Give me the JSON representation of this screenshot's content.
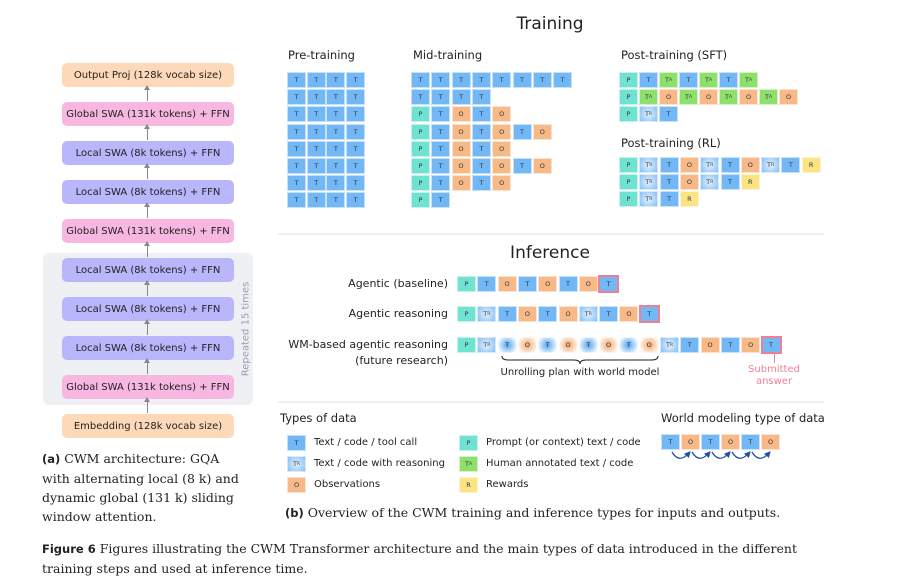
{
  "panel_a": {
    "layers": [
      {
        "label": "Output Proj  (128k vocab size)",
        "kind": "proj"
      },
      {
        "label": "Global SWA  (131k tokens)  +  FFN",
        "kind": "global"
      },
      {
        "label": "Local SWA  (8k tokens)  +  FFN",
        "kind": "local"
      },
      {
        "label": "Local SWA  (8k tokens)  +  FFN",
        "kind": "local"
      },
      {
        "label": "Global SWA  (131k tokens)  +  FFN",
        "kind": "global"
      },
      {
        "label": "Local SWA (8k tokens)  +  FFN",
        "kind": "local"
      },
      {
        "label": "Local SWA (8k tokens)  +  FFN",
        "kind": "local"
      },
      {
        "label": "Local SWA (8k tokens)  +  FFN",
        "kind": "local"
      },
      {
        "label": "Global SWA  (131k tokens)  +  FFN",
        "kind": "global"
      },
      {
        "label": "Embedding  (128k vocab size)",
        "kind": "proj"
      }
    ],
    "repeat_label": "Repeated  15 times",
    "caption_tag": "(a)",
    "caption_lines": [
      "CWM architecture: GQA",
      "with alternating local (8 k) and",
      "dynamic global (131 k) sliding",
      "window attention."
    ]
  },
  "colors": {
    "proj": "#fdd9b9",
    "global": "#f8b7e1",
    "local": "#b9b6fb",
    "repeat_bg": "#eff0f4",
    "submitted": "#ef7f95"
  },
  "tokens": {
    "T": {
      "label": "T",
      "sub": ""
    },
    "P": {
      "label": "P",
      "sub": ""
    },
    "O": {
      "label": "O",
      "sub": ""
    },
    "TA": {
      "label": "T",
      "sub": "A"
    },
    "TR": {
      "label": "T",
      "sub": "R"
    },
    "R": {
      "label": "R",
      "sub": ""
    }
  },
  "training": {
    "title": "Training",
    "pre": {
      "title": "Pre-training",
      "rows": [
        [
          "T",
          "T",
          "T",
          "T"
        ],
        [
          "T",
          "T",
          "T",
          "T"
        ],
        [
          "T",
          "T",
          "T",
          "T"
        ],
        [
          "T",
          "T",
          "T",
          "T"
        ],
        [
          "T",
          "T",
          "T",
          "T"
        ],
        [
          "T",
          "T",
          "T",
          "T"
        ],
        [
          "T",
          "T",
          "T",
          "T"
        ],
        [
          "T",
          "T",
          "T",
          "T"
        ]
      ]
    },
    "mid": {
      "title": "Mid-training",
      "rows": [
        [
          "T",
          "T",
          "T",
          "T",
          "T",
          "T",
          "T",
          "T"
        ],
        [
          "T",
          "T",
          "T",
          "T"
        ],
        [
          "P",
          "T",
          "O",
          "T",
          "O"
        ],
        [
          "P",
          "T",
          "O",
          "T",
          "O",
          "T",
          "O"
        ],
        [
          "P",
          "T",
          "O",
          "T",
          "O"
        ],
        [
          "P",
          "T",
          "O",
          "T",
          "O",
          "T",
          "O"
        ],
        [
          "P",
          "T",
          "O",
          "T",
          "O"
        ],
        [
          "P",
          "T"
        ]
      ]
    },
    "sft": {
      "title": "Post-training (SFT)",
      "rows": [
        [
          "P",
          "T",
          "TA",
          "T",
          "TA",
          "T",
          "TA"
        ],
        [
          "P",
          "TA",
          "O",
          "TA",
          "O",
          "TA",
          "O",
          "TA",
          "O"
        ],
        [
          "P",
          "TR",
          "T"
        ]
      ]
    },
    "rl": {
      "title": "Post-training (RL)",
      "rows": [
        [
          "P",
          "TR",
          "T",
          "O",
          "TR",
          "T",
          "O",
          "TR",
          "T",
          "R"
        ],
        [
          "P",
          "TR",
          "T",
          "O",
          "TR",
          "T",
          "R"
        ],
        [
          "P",
          "TR",
          "T",
          "R"
        ]
      ]
    }
  },
  "inference": {
    "title": "Inference",
    "rows": [
      {
        "label": "Agentic (baseline)",
        "tokens": [
          "P",
          "T",
          "O",
          "T",
          "O",
          "T",
          "O",
          "T"
        ]
      },
      {
        "label": "Agentic reasoning",
        "tokens": [
          "P",
          "TR",
          "T",
          "O",
          "T",
          "O",
          "TR",
          "T",
          "O",
          "T"
        ]
      },
      {
        "label": "WM-based agentic reasoning",
        "label2": "(future research)",
        "tokens": [
          "P",
          "TR",
          "T",
          "O",
          "T",
          "O",
          "T",
          "O",
          "T",
          "O",
          "TR",
          "T",
          "O",
          "T",
          "O",
          "T"
        ],
        "unrolled_from": 2,
        "unrolled_to": 9
      }
    ],
    "unroll_label": "Unrolling plan with world model",
    "submitted_label_1": "Submitted",
    "submitted_label_2": "answer"
  },
  "legend": {
    "title": "Types of data",
    "items": [
      {
        "token": "T",
        "label": "Text / code / tool call"
      },
      {
        "token": "TR",
        "label": "Text / code with reasoning"
      },
      {
        "token": "O",
        "label": "Observations"
      },
      {
        "token": "P",
        "label": "Prompt (or context)  text / code"
      },
      {
        "token": "TA",
        "label": "Human annotated text / code"
      },
      {
        "token": "R",
        "label": "Rewards"
      }
    ],
    "wm_title": "World modeling type of data",
    "wm_tokens": [
      "T",
      "O",
      "T",
      "O",
      "T",
      "O"
    ]
  },
  "panel_b_caption": {
    "tag": "(b)",
    "text": "Overview of the CWM training and inference types for inputs and outputs."
  },
  "figure_caption": {
    "tag": "Figure 6",
    "line1": "Figures illustrating the CWM Transformer architecture and the main types of data introduced in the different",
    "line2": "training steps and used at inference time."
  }
}
